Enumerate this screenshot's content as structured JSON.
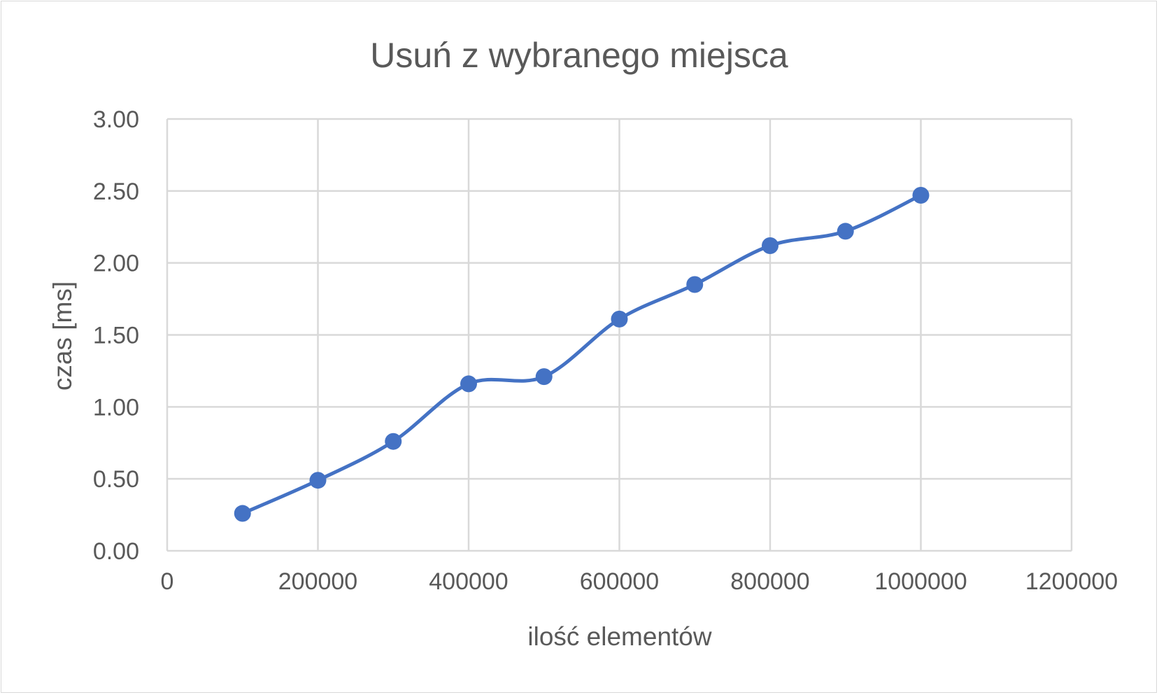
{
  "chart_data": {
    "type": "line",
    "title": "Usuń z wybranego miejsca",
    "xlabel": "ilość elementów",
    "ylabel": "czas [ms]",
    "xlim": [
      0,
      1200000
    ],
    "ylim": [
      0,
      3.0
    ],
    "x_ticks": [
      "0",
      "200000",
      "400000",
      "600000",
      "800000",
      "1000000",
      "1200000"
    ],
    "y_ticks": [
      "0.00",
      "0.50",
      "1.00",
      "1.50",
      "2.00",
      "2.50",
      "3.00"
    ],
    "grid": true,
    "smooth": true,
    "series": [
      {
        "color": "#4472c4",
        "x": [
          100000,
          200000,
          300000,
          400000,
          500000,
          600000,
          700000,
          800000,
          900000,
          1000000
        ],
        "y": [
          0.26,
          0.49,
          0.76,
          1.16,
          1.21,
          1.61,
          1.85,
          2.12,
          2.22,
          2.47
        ]
      }
    ]
  }
}
